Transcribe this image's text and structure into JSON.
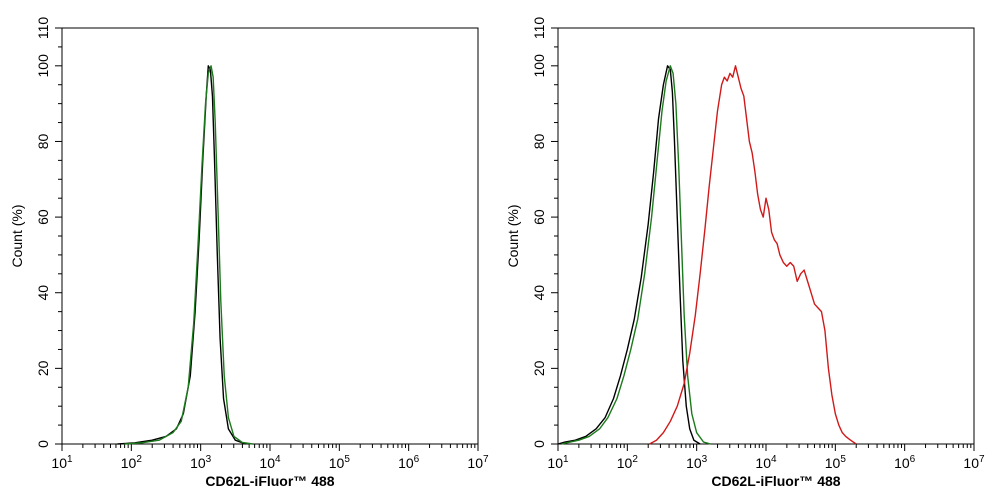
{
  "chart_data": [
    {
      "type": "line",
      "panel": "left",
      "xlabel": "CD62L-iFluor™ 488",
      "ylabel": "Count  (%)",
      "x_scale": "log10",
      "xlim_exp": [
        1,
        7
      ],
      "ylim": [
        0,
        110
      ],
      "x_ticks": [
        {
          "base": "10",
          "exp": "1"
        },
        {
          "base": "10",
          "exp": "2"
        },
        {
          "base": "10",
          "exp": "3"
        },
        {
          "base": "10",
          "exp": "4"
        },
        {
          "base": "10",
          "exp": "5"
        },
        {
          "base": "10",
          "exp": "6"
        },
        {
          "base": "10",
          "exp": "7"
        }
      ],
      "y_ticks": [
        "0",
        "20",
        "40",
        "60",
        "80",
        "100",
        "110"
      ],
      "grid": false,
      "series": [
        {
          "name": "black",
          "color": "#000000",
          "points": [
            [
              1.8,
              0
            ],
            [
              2.05,
              0.3
            ],
            [
              2.3,
              1
            ],
            [
              2.5,
              2
            ],
            [
              2.65,
              4
            ],
            [
              2.75,
              8
            ],
            [
              2.85,
              18
            ],
            [
              2.92,
              35
            ],
            [
              2.98,
              55
            ],
            [
              3.03,
              75
            ],
            [
              3.08,
              92
            ],
            [
              3.11,
              100
            ],
            [
              3.14,
              99
            ],
            [
              3.17,
              92
            ],
            [
              3.2,
              75
            ],
            [
              3.24,
              50
            ],
            [
              3.28,
              28
            ],
            [
              3.33,
              12
            ],
            [
              3.4,
              4
            ],
            [
              3.5,
              1
            ],
            [
              3.65,
              0
            ]
          ]
        },
        {
          "name": "green",
          "color": "#1b7a1b",
          "points": [
            [
              1.9,
              0
            ],
            [
              2.15,
              0.3
            ],
            [
              2.4,
              1
            ],
            [
              2.6,
              3
            ],
            [
              2.72,
              6
            ],
            [
              2.82,
              15
            ],
            [
              2.9,
              32
            ],
            [
              2.96,
              52
            ],
            [
              3.02,
              74
            ],
            [
              3.07,
              90
            ],
            [
              3.11,
              98
            ],
            [
              3.15,
              100
            ],
            [
              3.18,
              97
            ],
            [
              3.21,
              85
            ],
            [
              3.25,
              62
            ],
            [
              3.29,
              38
            ],
            [
              3.34,
              18
            ],
            [
              3.4,
              7
            ],
            [
              3.48,
              2
            ],
            [
              3.6,
              0.4
            ],
            [
              3.75,
              0
            ]
          ]
        }
      ]
    },
    {
      "type": "line",
      "panel": "right",
      "xlabel": "CD62L-iFluor™ 488",
      "ylabel": "Count  (%)",
      "x_scale": "log10",
      "xlim_exp": [
        1,
        7
      ],
      "ylim": [
        0,
        110
      ],
      "x_ticks": [
        {
          "base": "10",
          "exp": "1"
        },
        {
          "base": "10",
          "exp": "2"
        },
        {
          "base": "10",
          "exp": "3"
        },
        {
          "base": "10",
          "exp": "4"
        },
        {
          "base": "10",
          "exp": "5"
        },
        {
          "base": "10",
          "exp": "6"
        },
        {
          "base": "10",
          "exp": "7"
        }
      ],
      "y_ticks": [
        "0",
        "20",
        "40",
        "60",
        "80",
        "100",
        "110"
      ],
      "grid": false,
      "series": [
        {
          "name": "black",
          "color": "#000000",
          "points": [
            [
              1.0,
              0
            ],
            [
              1.1,
              0.5
            ],
            [
              1.25,
              1
            ],
            [
              1.4,
              2
            ],
            [
              1.55,
              4
            ],
            [
              1.68,
              7
            ],
            [
              1.8,
              12
            ],
            [
              1.9,
              18
            ],
            [
              2.0,
              25
            ],
            [
              2.1,
              33
            ],
            [
              2.2,
              44
            ],
            [
              2.3,
              58
            ],
            [
              2.38,
              72
            ],
            [
              2.45,
              86
            ],
            [
              2.52,
              95
            ],
            [
              2.58,
              100
            ],
            [
              2.62,
              99
            ],
            [
              2.65,
              93
            ],
            [
              2.68,
              80
            ],
            [
              2.72,
              60
            ],
            [
              2.76,
              40
            ],
            [
              2.8,
              22
            ],
            [
              2.85,
              10
            ],
            [
              2.9,
              4
            ],
            [
              2.96,
              1
            ],
            [
              3.05,
              0
            ]
          ]
        },
        {
          "name": "green",
          "color": "#1b7a1b",
          "points": [
            [
              1.05,
              0
            ],
            [
              1.15,
              0.4
            ],
            [
              1.3,
              1
            ],
            [
              1.45,
              2
            ],
            [
              1.6,
              4
            ],
            [
              1.72,
              7
            ],
            [
              1.85,
              12
            ],
            [
              1.95,
              18
            ],
            [
              2.05,
              25
            ],
            [
              2.15,
              33
            ],
            [
              2.25,
              45
            ],
            [
              2.35,
              60
            ],
            [
              2.43,
              75
            ],
            [
              2.5,
              88
            ],
            [
              2.56,
              96
            ],
            [
              2.62,
              100
            ],
            [
              2.66,
              98
            ],
            [
              2.7,
              90
            ],
            [
              2.74,
              74
            ],
            [
              2.78,
              54
            ],
            [
              2.82,
              34
            ],
            [
              2.87,
              18
            ],
            [
              2.93,
              8
            ],
            [
              3.0,
              3
            ],
            [
              3.1,
              0.5
            ],
            [
              3.2,
              0
            ]
          ]
        },
        {
          "name": "red",
          "color": "#d01a1a",
          "points": [
            [
              2.32,
              0
            ],
            [
              2.42,
              1
            ],
            [
              2.52,
              3
            ],
            [
              2.62,
              6
            ],
            [
              2.72,
              10
            ],
            [
              2.82,
              16
            ],
            [
              2.9,
              24
            ],
            [
              2.98,
              34
            ],
            [
              3.05,
              45
            ],
            [
              3.12,
              57
            ],
            [
              3.18,
              68
            ],
            [
              3.24,
              78
            ],
            [
              3.3,
              88
            ],
            [
              3.36,
              95
            ],
            [
              3.4,
              97
            ],
            [
              3.44,
              96
            ],
            [
              3.48,
              98
            ],
            [
              3.52,
              97
            ],
            [
              3.56,
              100
            ],
            [
              3.6,
              97
            ],
            [
              3.64,
              94
            ],
            [
              3.68,
              92
            ],
            [
              3.72,
              86
            ],
            [
              3.76,
              80
            ],
            [
              3.8,
              77
            ],
            [
              3.84,
              72
            ],
            [
              3.88,
              66
            ],
            [
              3.92,
              62
            ],
            [
              3.96,
              60
            ],
            [
              4.0,
              65
            ],
            [
              4.04,
              62
            ],
            [
              4.08,
              56
            ],
            [
              4.12,
              54
            ],
            [
              4.16,
              53
            ],
            [
              4.2,
              50
            ],
            [
              4.25,
              48
            ],
            [
              4.3,
              47
            ],
            [
              4.35,
              48
            ],
            [
              4.4,
              47
            ],
            [
              4.45,
              43
            ],
            [
              4.5,
              45
            ],
            [
              4.55,
              46
            ],
            [
              4.6,
              43
            ],
            [
              4.65,
              40
            ],
            [
              4.7,
              37
            ],
            [
              4.75,
              36
            ],
            [
              4.8,
              35
            ],
            [
              4.85,
              30
            ],
            [
              4.9,
              20
            ],
            [
              4.95,
              13
            ],
            [
              5.0,
              8
            ],
            [
              5.05,
              5
            ],
            [
              5.1,
              3
            ],
            [
              5.15,
              2
            ],
            [
              5.22,
              1
            ],
            [
              5.3,
              0
            ]
          ]
        }
      ]
    }
  ]
}
